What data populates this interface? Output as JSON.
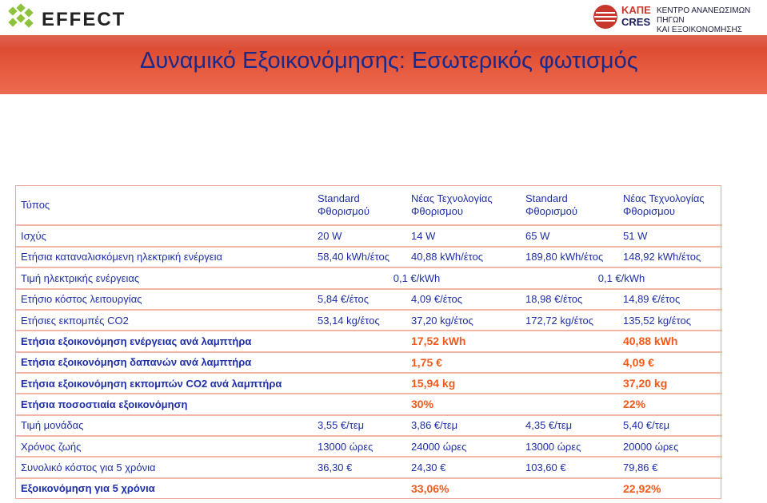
{
  "header": {
    "effect_logo": "EFFECT",
    "kape_logo": "ΚΑΠΕ",
    "cres_logo": "CRES",
    "kape_line1": "ΚΕΝΤΡΟ ΑΝΑΝΕΩΣΙΜΩΝ ΠΗΓΩΝ",
    "kape_line2": "ΚΑΙ ΕΞΟΙΚΟΝΟΜΗΣΗΣ ΕΝΕΡΓΕΙΑΣ"
  },
  "title": "Δυναμικό Εξοικονόμησης: Εσωτερικός φωτισμός",
  "table": {
    "header": {
      "label": "Τύπος",
      "cols": [
        "Standard Φθορισμού",
        "Νέας Τεχνολογίας Φθορισμου",
        "Standard Φθορισμού",
        "Νέας Τεχνολογίας Φθορισμου"
      ]
    },
    "rows": [
      {
        "label": "Ισχύς",
        "bold": false,
        "cells": [
          "20 W",
          "14 W",
          "65 W",
          "51 W"
        ]
      },
      {
        "label": "Ετήσια καταναλισκόμενη ηλεκτρική ενέργεια",
        "bold": false,
        "cells": [
          "58,40 kWh/έτος",
          "40,88 kWh/έτος",
          "189,80 kWh/έτος",
          "148,92 kWh/έτος"
        ]
      },
      {
        "label": "Τιμή ηλεκτρικής ενέργειας",
        "bold": false,
        "merged": [
          "0,1 €/kWh",
          "0,1 €/kWh"
        ]
      },
      {
        "label": "Ετήσιο κόστος λειτουργίας",
        "bold": false,
        "cells": [
          "5,84 €/έτος",
          "4,09 €/έτος",
          "18,98 €/έτος",
          "14,89 €/έτος"
        ]
      },
      {
        "label": "Ετήσιες εκπομπές CO2",
        "bold": false,
        "cells": [
          "53,14 kg/έτος",
          "37,20 kg/έτος",
          "172,72 kg/έτος",
          "135,52 kg/έτος"
        ]
      },
      {
        "label": "Ετήσια εξοικονόμηση ενέργειας ανά λαμπτήρα",
        "bold": true,
        "savings": [
          "17,52 kWh",
          "40,88 kWh"
        ]
      },
      {
        "label": "Ετήσια εξοικονόμηση δαπανών ανά λαμπτήρα",
        "bold": true,
        "savings": [
          "1,75 €",
          "4,09 €"
        ]
      },
      {
        "label": "Ετήσια εξοικονόμηση εκπομπών CO2 ανά λαμπτήρα",
        "bold": true,
        "savings": [
          "15,94 kg",
          "37,20 kg"
        ]
      },
      {
        "label": "Ετήσια ποσοστιαία εξοικονόμηση",
        "bold": true,
        "savings": [
          "30%",
          "22%"
        ]
      },
      {
        "label": "Τιμή μονάδας",
        "bold": false,
        "cells": [
          "3,55 €/τεμ",
          "3,86 €/τεμ",
          "4,35 €/τεμ",
          "5,40 €/τεμ"
        ]
      },
      {
        "label": "Χρόνος ζωής",
        "bold": false,
        "cells": [
          "13000 ώρες",
          "24000 ώρες",
          "13000 ώρες",
          "20000 ώρες"
        ]
      },
      {
        "label": "Συνολικό κόστος για 5 χρόνια",
        "bold": false,
        "cells": [
          "36,30 €",
          "24,30 €",
          "103,60 €",
          "79,86 €"
        ]
      },
      {
        "label": "Εξοικονόμηση για 5 χρόνια",
        "bold": true,
        "savings": [
          "33,06%",
          "22,92%"
        ]
      }
    ]
  }
}
